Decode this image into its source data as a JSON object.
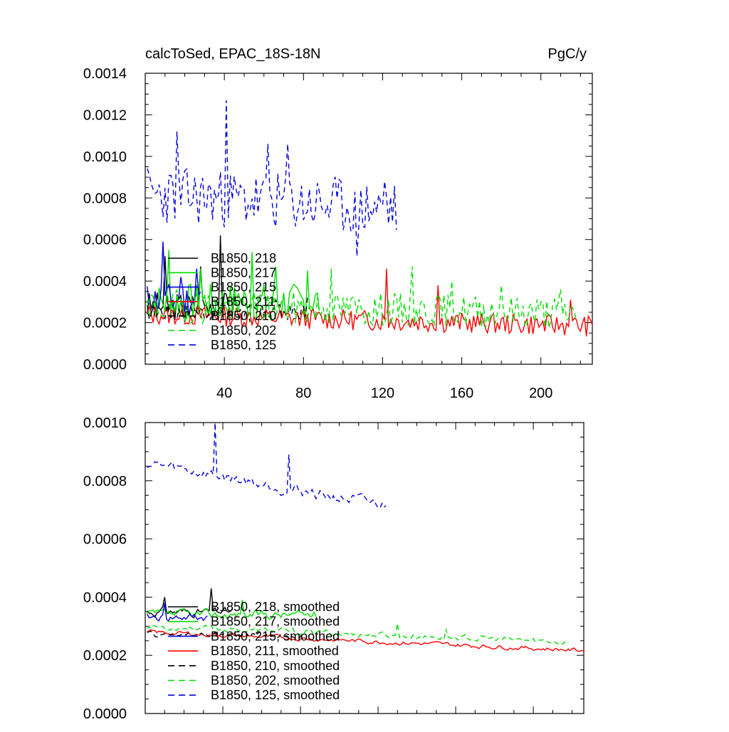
{
  "figure": {
    "title_left": "calcToSed, EPAC_18S-18N",
    "title_right": "PgC/y"
  },
  "chart_data": [
    {
      "type": "line",
      "title": "calcToSed, EPAC_18S-18N",
      "units": "PgC/y",
      "xlim": [
        0,
        226
      ],
      "ylim": [
        0,
        0.0014
      ],
      "xticks": [
        40,
        80,
        120,
        160,
        200
      ],
      "yticks": [
        0.0,
        0.0002,
        0.0004,
        0.0006,
        0.0008,
        0.001,
        0.0012,
        0.0014
      ],
      "ytick_labels": [
        "0.0000",
        "0.0002",
        "0.0004",
        "0.0006",
        "0.0008",
        "0.0010",
        "0.0012",
        "0.0014"
      ],
      "xtick_labels": [
        "40",
        "80",
        "120",
        "160",
        "200"
      ],
      "legend_position": "bottom-left",
      "series": [
        {
          "name": "B1850, 218",
          "legend": "B1850, 218",
          "color": "#000000",
          "dash": "solid",
          "length": 45,
          "base": 0.00028,
          "amp": 7e-05,
          "spikes": [
            [
              10,
              0.00052
            ],
            [
              28,
              0.00047
            ],
            [
              38,
              0.00062
            ]
          ],
          "seed": 3
        },
        {
          "name": "B1850, 217",
          "legend": "B1850, 217",
          "color": "#00dd00",
          "dash": "solid",
          "length": 88,
          "base": 0.0003,
          "amp": 9e-05,
          "spikes": [
            [
              12,
              0.00055
            ],
            [
              28,
              0.00046
            ],
            [
              54,
              0.00054
            ],
            [
              66,
              0.00047
            ],
            [
              82,
              0.00045
            ]
          ],
          "seed": 7
        },
        {
          "name": "B1850, 215",
          "legend": "B1850, 215",
          "color": "#0000dd",
          "dash": "solid",
          "length": 28,
          "base": 0.00031,
          "amp": 8e-05,
          "spikes": [
            [
              9,
              0.00059
            ],
            [
              18,
              0.00042
            ],
            [
              26,
              0.00046
            ]
          ],
          "seed": 11
        },
        {
          "name": "B1850, 211",
          "legend": "B1850, 211",
          "color": "#ff0000",
          "dash": "solid",
          "length": 226,
          "base": 0.00024,
          "amp": 5e-05,
          "trend": -2.5e-07,
          "spikes": [
            [
              122,
              0.00046
            ],
            [
              148,
              0.00038
            ],
            [
              215,
              0.00031
            ]
          ],
          "seed": 13
        },
        {
          "name": "B1850, 210",
          "legend": "B1850, 210",
          "color": "#000000",
          "dash": "dashed",
          "length": 82,
          "base": 0.00025,
          "amp": 4e-05,
          "spikes": [
            [
              66,
              0.00031
            ],
            [
              82,
              0.00032
            ]
          ],
          "seed": 17
        },
        {
          "name": "B1850, 202",
          "legend": "B1850, 202",
          "color": "#00dd00",
          "dash": "dashed",
          "length": 218,
          "base": 0.00028,
          "amp": 8e-05,
          "trend": -1.5e-07,
          "spikes": [
            [
              94,
              0.00046
            ],
            [
              135,
              0.00047
            ],
            [
              155,
              0.0004
            ],
            [
              180,
              0.00038
            ],
            [
              210,
              0.00036
            ]
          ],
          "seed": 19
        },
        {
          "name": "B1850, 125",
          "legend": "B1850, 125",
          "color": "#0000dd",
          "dash": "dashed",
          "length": 127,
          "base": 0.00082,
          "amp": 0.00014,
          "trend": -6e-07,
          "spikes": [
            [
              16,
              0.00112
            ],
            [
              41,
              0.00127
            ],
            [
              62,
              0.00106
            ],
            [
              72,
              0.00106
            ],
            [
              107,
              0.00052
            ],
            [
              121,
              0.00088
            ]
          ],
          "seed": 23
        }
      ]
    },
    {
      "type": "line",
      "title": "",
      "xlim": [
        0,
        226
      ],
      "ylim": [
        0,
        0.001
      ],
      "xticks": [
        40,
        80,
        120,
        160,
        200
      ],
      "yticks": [
        0.0,
        0.0002,
        0.0004,
        0.0006,
        0.0008,
        0.001
      ],
      "ytick_labels": [
        "0.0000",
        "0.0002",
        "0.0004",
        "0.0006",
        "0.0008",
        "0.0010"
      ],
      "legend_position": "bottom-left",
      "series": [
        {
          "name": "B1850, 218, smoothed",
          "legend": "B1850, 218, smoothed",
          "color": "#000000",
          "dash": "solid",
          "length": 45,
          "base": 0.00035,
          "amp": 3e-05,
          "spikes": [
            [
              10,
              0.0004
            ],
            [
              34,
              0.00043
            ]
          ],
          "seed": 31
        },
        {
          "name": "B1850, 217, smoothed",
          "legend": "B1850, 217, smoothed",
          "color": "#00dd00",
          "dash": "solid",
          "length": 88,
          "base": 0.00034,
          "amp": 3e-05,
          "spikes": [
            [
              50,
              0.00039
            ]
          ],
          "seed": 37
        },
        {
          "name": "B1850, 215, smoothed",
          "legend": "B1850, 215, smoothed",
          "color": "#0000dd",
          "dash": "solid",
          "length": 32,
          "base": 0.00033,
          "amp": 3e-05,
          "spikes": [
            [
              10,
              0.00038
            ]
          ],
          "seed": 41
        },
        {
          "name": "B1850, 211, smoothed",
          "legend": "B1850, 211, smoothed",
          "color": "#ff0000",
          "dash": "solid",
          "length": 226,
          "base": 0.00028,
          "amp": 1.5e-05,
          "trend": -2.8e-07,
          "spikes": [],
          "seed": 43
        },
        {
          "name": "B1850, 210, smoothed",
          "legend": "B1850, 210, smoothed",
          "color": "#000000",
          "dash": "dashed",
          "length": 82,
          "base": 0.00027,
          "amp": 2e-05,
          "spikes": [],
          "seed": 47
        },
        {
          "name": "B1850, 202, smoothed",
          "legend": "B1850, 202, smoothed",
          "color": "#00dd00",
          "dash": "dashed",
          "length": 218,
          "base": 0.0003,
          "amp": 2e-05,
          "trend": -2.5e-07,
          "spikes": [
            [
              130,
              0.00031
            ],
            [
              155,
              0.00029
            ]
          ],
          "seed": 53
        },
        {
          "name": "B1850, 125, smoothed",
          "legend": "B1850, 125, smoothed",
          "color": "#0000dd",
          "dash": "dashed",
          "length": 124,
          "base": 0.00086,
          "amp": 4e-05,
          "trend": -1.2e-06,
          "spikes": [
            [
              36,
              0.001
            ],
            [
              74,
              0.00089
            ]
          ],
          "seed": 59
        }
      ]
    }
  ]
}
